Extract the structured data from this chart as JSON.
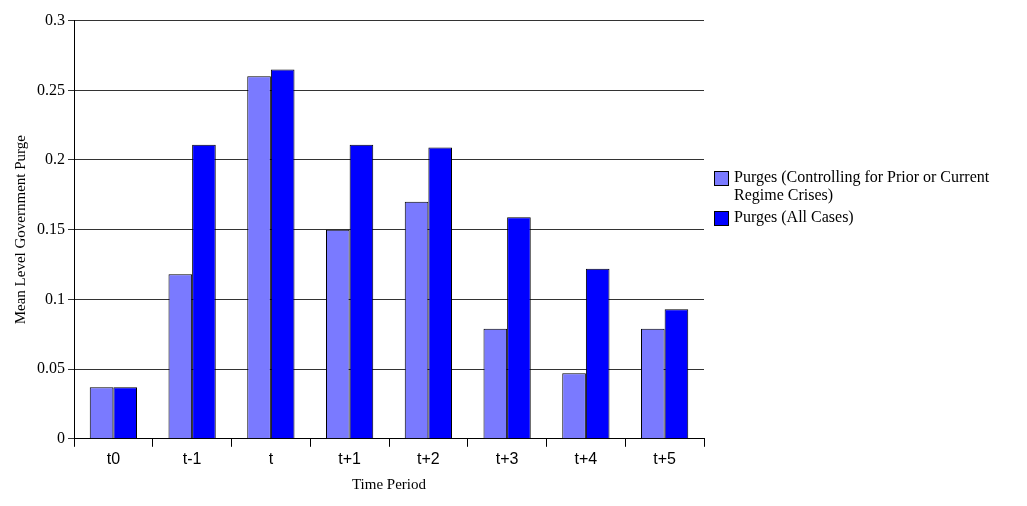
{
  "chart_data": {
    "type": "bar",
    "xlabel": "Time Period",
    "ylabel": "Mean Level Government Purge",
    "categories": [
      "t0",
      "t-1",
      "t",
      "t+1",
      "t+2",
      "t+3",
      "t+4",
      "t+5"
    ],
    "series": [
      {
        "name": "Purges (Controlling for Prior or Current Regime Crises)",
        "color": "#7a7aff",
        "values": [
          0.037,
          0.118,
          0.26,
          0.15,
          0.17,
          0.079,
          0.047,
          0.079
        ]
      },
      {
        "name": "Purges (All Cases)",
        "color": "#0000ff",
        "values": [
          0.037,
          0.211,
          0.265,
          0.211,
          0.209,
          0.159,
          0.122,
          0.093
        ]
      }
    ],
    "ylim": [
      0,
      0.3
    ],
    "yticks": [
      0,
      0.05,
      0.1,
      0.15,
      0.2,
      0.25,
      0.3
    ],
    "grid": "y",
    "legend": "right"
  }
}
